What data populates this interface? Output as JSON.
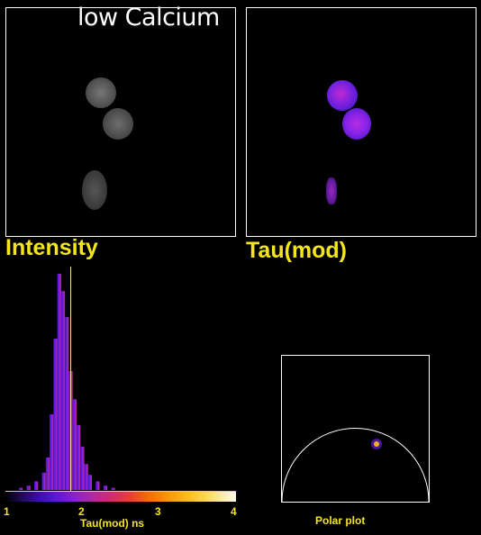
{
  "intensity_panel": {
    "condition": "low Calcium",
    "caption": "Intensity"
  },
  "tau_panel": {
    "caption": "Tau(mod)"
  },
  "histogram": {
    "ticks": [
      "1",
      "2",
      "3",
      "4"
    ],
    "axis_label": "Tau(mod) ns",
    "marker_value": 1.85
  },
  "polar_plot": {
    "label": "Polar plot"
  },
  "chart_data": {
    "type": "bar",
    "xlabel": "Tau(mod) ns",
    "xlim": [
      1,
      4
    ],
    "x": [
      1.2,
      1.3,
      1.4,
      1.5,
      1.55,
      1.6,
      1.65,
      1.7,
      1.75,
      1.8,
      1.85,
      1.9,
      1.95,
      2.0,
      2.05,
      2.1,
      2.2,
      2.3,
      2.4
    ],
    "values": [
      0.01,
      0.02,
      0.04,
      0.08,
      0.15,
      0.35,
      0.7,
      1.0,
      0.92,
      0.8,
      0.55,
      0.42,
      0.3,
      0.2,
      0.12,
      0.07,
      0.04,
      0.02,
      0.01
    ]
  }
}
